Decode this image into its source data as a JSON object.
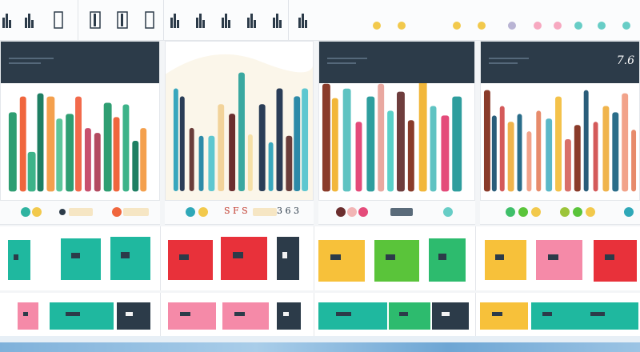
{
  "toolbar": {
    "icons": [
      "bar-chart-icon",
      "bar-chart-icon",
      "page-icon",
      "columns-icon",
      "columns-icon",
      "page-icon",
      "bar-chart-icon",
      "bar-chart-icon",
      "bar-chart-icon",
      "bar-chart-icon",
      "bar-chart-icon",
      "bar-chart-icon"
    ],
    "dots": [
      "#f2c94c",
      "#f2c94c",
      "#f2c94c",
      "#f2c94c",
      "#b9b4d4",
      "#f7a8c0",
      "#f7a8c0",
      "#67cdc6",
      "#67cdc6",
      "#67cdc6"
    ]
  },
  "panels": [
    {
      "number": "",
      "colors": [
        "#2f9e72",
        "#f0663d",
        "#3db389",
        "#1e7f63",
        "#f4a04d",
        "#5dc69b",
        "#2f9e72",
        "#f26a4b",
        "#c8506e",
        "#b34a60"
      ]
    },
    {
      "number": "",
      "colors": [
        "#39a7bd",
        "#2a3d57",
        "#6a3d3a",
        "#2d8aa8",
        "#5ec7d0",
        "#f2d39a",
        "#6b2e2e",
        "#3aa8a0",
        "#f6e0a6",
        "#2a3d57"
      ]
    },
    {
      "number": "",
      "colors": [
        "#8a3b2a",
        "#f2b73a",
        "#5fc3c2",
        "#e44b7a",
        "#2f9e9e",
        "#e9a8a0",
        "#5ad1c9",
        "#6e3d3d"
      ]
    },
    {
      "number": "7.6",
      "colors": [
        "#8a3b2a",
        "#2a5d7a",
        "#d45a5a",
        "#f0b44c",
        "#2a6d8a",
        "#f2a38a",
        "#e78b6b",
        "#5bb8c8",
        "#f4c24a",
        "#d9706a"
      ]
    }
  ],
  "legend": {
    "texts": [
      "S F S",
      "3 6 3"
    ]
  },
  "tiles_row1": [
    {
      "color": "#1fb89f"
    },
    {
      "color": "#1fb89f"
    },
    {
      "color": "#1fb89f"
    },
    {
      "color": "#e8313a"
    },
    {
      "color": "#e8313a"
    },
    {
      "color": "#2c3b49"
    },
    {
      "color": "#f7c13a"
    },
    {
      "color": "#5ac43a"
    },
    {
      "color": "#2dbb6e"
    },
    {
      "color": "#f7c13a"
    },
    {
      "color": "#f58aa8"
    },
    {
      "color": "#e8313a"
    }
  ],
  "tiles_row2": [
    {
      "color": "#f58aa8"
    },
    {
      "color": "#1fb89f"
    },
    {
      "color": "#2c3b49"
    },
    {
      "color": "#f58aa8"
    },
    {
      "color": "#f58aa8"
    },
    {
      "color": "#2c3b49"
    },
    {
      "color": "#1fb89f"
    },
    {
      "color": "#2dbb6e"
    },
    {
      "color": "#2c3b49"
    },
    {
      "color": "#f7c13a"
    },
    {
      "color": "#1fb89f"
    },
    {
      "color": "#1fb89f"
    }
  ]
}
